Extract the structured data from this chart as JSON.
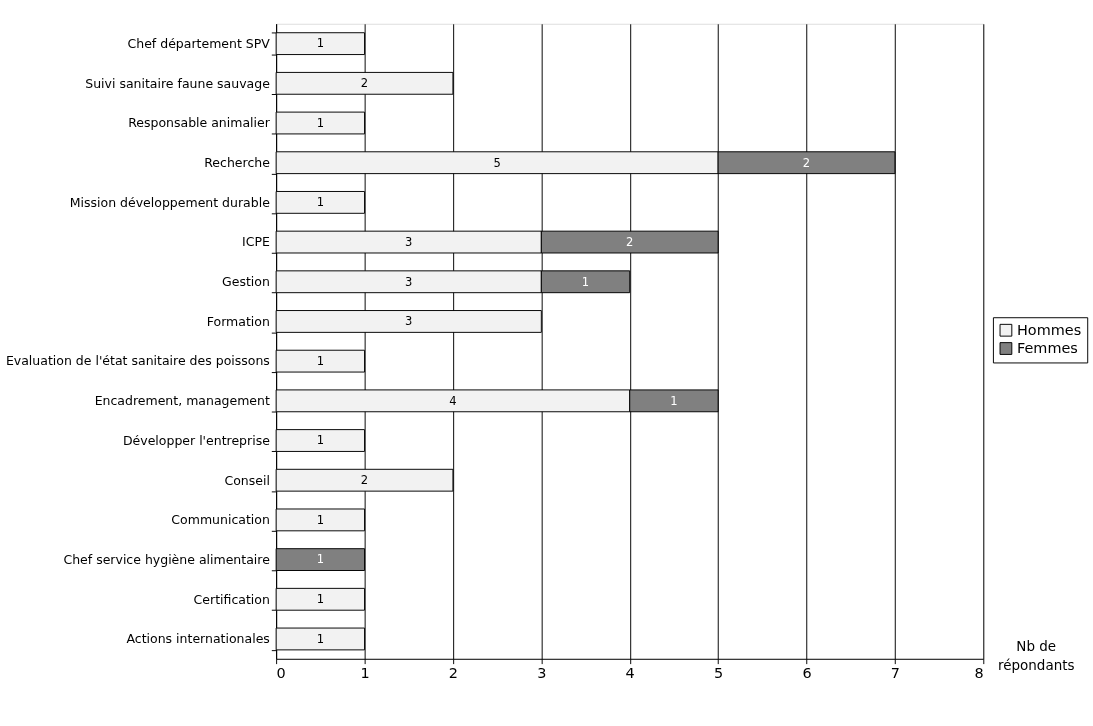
{
  "chart_data": {
    "type": "bar",
    "orientation": "horizontal",
    "stacked": true,
    "xlabel": "Nb de répondants",
    "categories": [
      "Chef département SPV",
      "Suivi sanitaire faune sauvage",
      "Responsable animalier",
      "Recherche",
      "Mission développement durable",
      "ICPE",
      "Gestion",
      "Formation",
      "Evaluation de l'état sanitaire des poissons",
      "Encadrement, management",
      "Développer l'entreprise",
      "Conseil",
      "Communication",
      "Chef service hygiène alimentaire",
      "Certification",
      "Actions internationales"
    ],
    "series": [
      {
        "name": "Hommes",
        "color": "#f2f2f2",
        "values": [
          1,
          2,
          1,
          5,
          1,
          3,
          3,
          3,
          1,
          4,
          1,
          2,
          1,
          null,
          1,
          1
        ]
      },
      {
        "name": "Femmes",
        "color": "#808080",
        "values": [
          null,
          null,
          null,
          2,
          null,
          2,
          1,
          null,
          null,
          1,
          null,
          null,
          null,
          1,
          null,
          null
        ]
      }
    ],
    "xlim": [
      0,
      8
    ],
    "xticks": [
      0,
      1,
      2,
      3,
      4,
      5,
      6,
      7,
      8
    ],
    "grid": "x",
    "legend": "right",
    "data_labels": true
  }
}
